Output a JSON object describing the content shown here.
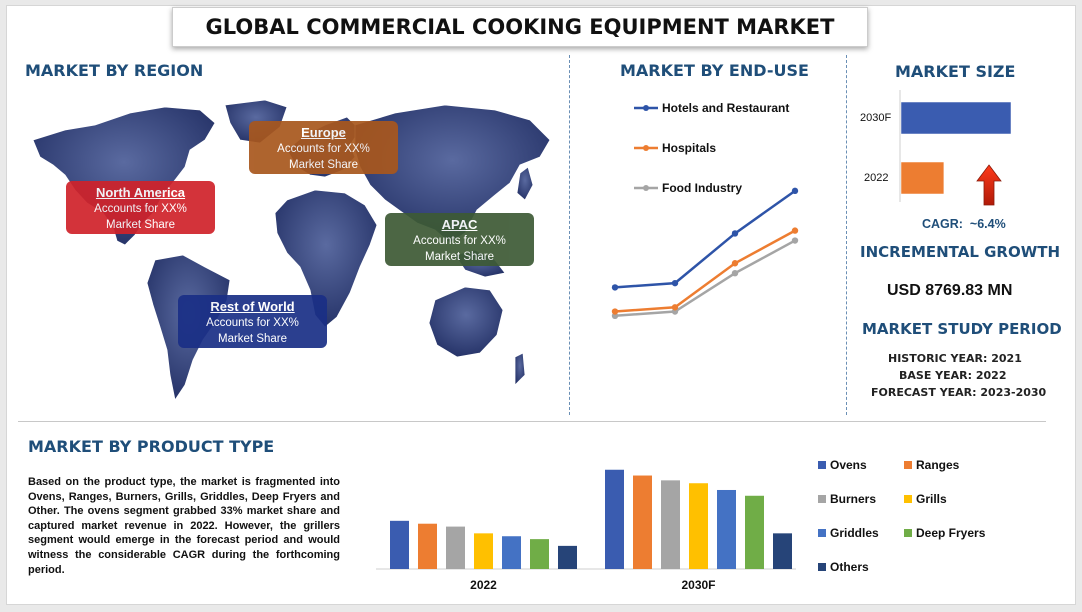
{
  "title": "GLOBAL COMMERCIAL COOKING EQUIPMENT MARKET",
  "region": {
    "heading": "MARKET BY REGION",
    "boxes": [
      {
        "name": "North America",
        "line1": "Accounts for XX%",
        "line2": "Market Share",
        "color": "#d0222a"
      },
      {
        "name": "Europe",
        "line1": "Accounts for XX%",
        "line2": "Market Share",
        "color": "#a8571d"
      },
      {
        "name": "APAC",
        "line1": "Accounts for XX%",
        "line2": "Market Share",
        "color": "#3d5a35"
      },
      {
        "name": "Rest of World",
        "line1": "Accounts for XX%",
        "line2": "Market Share",
        "color": "#1a2f86"
      }
    ]
  },
  "enduse": {
    "heading": "MARKET BY END-USE",
    "legend": [
      "Hotels and Restaurant",
      "Hospitals",
      "Food Industry"
    ]
  },
  "size": {
    "heading": "MARKET SIZE",
    "labels": [
      "2030F",
      "2022"
    ],
    "cagr_label": "CAGR:",
    "cagr_value": "~6.4%"
  },
  "growth": {
    "heading": "INCREMENTAL GROWTH",
    "value": "USD 8769.83 MN"
  },
  "study": {
    "heading": "MARKET STUDY PERIOD",
    "historic": "HISTORIC YEAR: 2021",
    "base": "BASE YEAR: 2022",
    "forecast": "FORECAST YEAR: 2023-2030"
  },
  "product": {
    "heading": "MARKET BY PRODUCT TYPE",
    "paragraph": "Based on the product type, the market is fragmented into Ovens, Ranges, Burners, Grills, Griddles, Deep Fryers and Other. The ovens segment grabbed 33% market share and captured market revenue in 2022. However, the grillers segment would emerge in the forecast period and would witness the considerable CAGR during the forthcoming period."
  },
  "chart_data": [
    {
      "type": "line",
      "x": [
        1,
        2,
        3,
        4
      ],
      "series": [
        {
          "name": "Hotels and Restaurant",
          "color": "#2e54a8",
          "values": [
            30,
            33,
            68,
            98
          ]
        },
        {
          "name": "Hospitals",
          "color": "#ed7d31",
          "values": [
            13,
            16,
            47,
            70
          ]
        },
        {
          "name": "Food Industry",
          "color": "#a5a5a5",
          "values": [
            10,
            13,
            40,
            63
          ]
        }
      ]
    },
    {
      "type": "bar",
      "orientation": "horizontal",
      "categories": [
        "2030F",
        "2022"
      ],
      "values": [
        100,
        39
      ],
      "colors": [
        "#3a5cb0",
        "#ed7d31"
      ]
    },
    {
      "type": "bar",
      "categories": [
        "2022",
        "2030F"
      ],
      "series": [
        {
          "name": "Ovens",
          "color": "#3a5cb0",
          "values": [
            50,
            103
          ]
        },
        {
          "name": "Ranges",
          "color": "#ed7d31",
          "values": [
            47,
            97
          ]
        },
        {
          "name": "Burners",
          "color": "#a5a5a5",
          "values": [
            44,
            92
          ]
        },
        {
          "name": "Grills",
          "color": "#ffc000",
          "values": [
            37,
            89
          ]
        },
        {
          "name": "Griddles",
          "color": "#4472c4",
          "values": [
            34,
            82
          ]
        },
        {
          "name": "Deep Fryers",
          "color": "#70ad47",
          "values": [
            31,
            76
          ]
        },
        {
          "name": "Others",
          "color": "#264478",
          "values": [
            24,
            37
          ]
        }
      ],
      "ylim": [
        0,
        110
      ]
    }
  ]
}
